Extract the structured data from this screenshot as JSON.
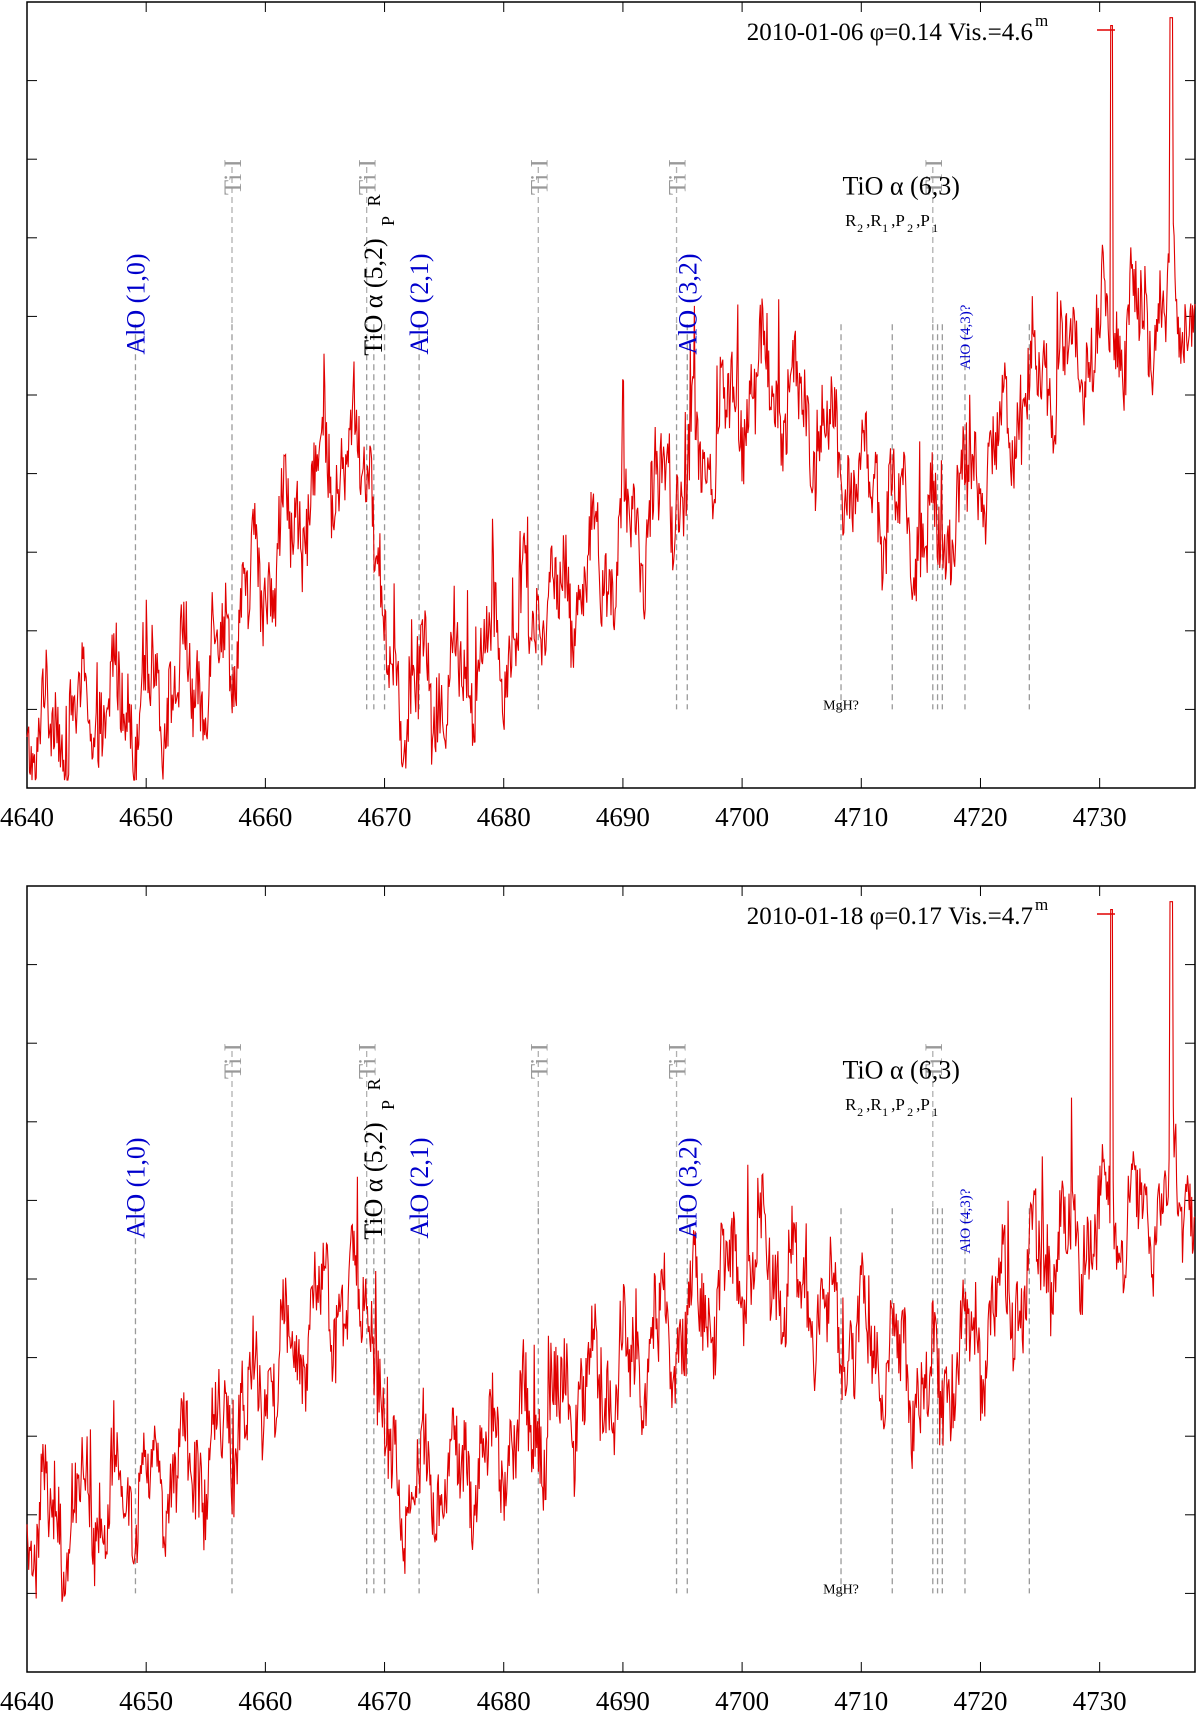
{
  "chart_data": [
    {
      "type": "line",
      "title": "",
      "xlabel": "",
      "ylabel": "",
      "xlim": [
        4640,
        4738
      ],
      "ylim": [
        0,
        1
      ],
      "x_ticks": [
        4640,
        4650,
        4660,
        4670,
        4680,
        4690,
        4700,
        4710,
        4720,
        4730
      ],
      "grid": false,
      "legend": {
        "label": "2010-01-06 φ=0.14 Vis.=4.6",
        "superscript": "m",
        "placement": "top-right",
        "color": "#e00000"
      },
      "series": [
        {
          "name": "2010-01-06 φ=0.14 Vis.=4.6m",
          "color": "#e00000",
          "x_range": [
            4640,
            4738
          ],
          "trend": [
            [
              4640,
              0.06
            ],
            [
              4655,
              0.14
            ],
            [
              4665,
              0.4
            ],
            [
              4669,
              0.42
            ],
            [
              4670,
              0.14
            ],
            [
              4674,
              0.11
            ],
            [
              4690,
              0.3
            ],
            [
              4702,
              0.52
            ],
            [
              4708,
              0.42
            ],
            [
              4716,
              0.3
            ],
            [
              4725,
              0.52
            ],
            [
              4738,
              0.62
            ]
          ],
          "peaks": [
            [
              4731,
              0.97
            ],
            [
              4736,
              0.98
            ]
          ]
        }
      ],
      "line_ids": [
        {
          "label": "AlO (1,0)",
          "x": 4649.1,
          "color": "#0000cc"
        },
        {
          "label": "Ti I",
          "x": 4657.2,
          "color": "#999999"
        },
        {
          "label": "Ti I",
          "x": 4668.5,
          "color": "#999999"
        },
        {
          "label": "AlO (2,1)",
          "x": 4672.9,
          "color": "#0000cc"
        },
        {
          "label": "Ti I",
          "x": 4682.9,
          "color": "#999999"
        },
        {
          "label": "Ti I",
          "x": 4694.5,
          "color": "#999999"
        },
        {
          "label": "AlO (3,2)",
          "x": 4695.4,
          "color": "#0000cc"
        },
        {
          "label": "Ti I",
          "x": 4716.0,
          "color": "#999999"
        }
      ],
      "annotations": {
        "tio52": "TiO α (5,2)",
        "tio52_R": "R",
        "tio52_P": "P",
        "tio63": "TiO α (6,3)",
        "branches": [
          {
            "label": "R",
            "sub": "2"
          },
          {
            "label": ",R",
            "sub": "1"
          },
          {
            "label": ",P",
            "sub": "2"
          },
          {
            "label": ",P",
            "sub": "1"
          }
        ],
        "alo43": "AlO (4,3)?",
        "mgh": "MgH?"
      },
      "dashed_markers": [
        4649.1,
        4657.2,
        4668.5,
        4669.1,
        4670.0,
        4672.9,
        4682.9,
        4694.5,
        4695.4,
        4708.3,
        4712.6,
        4716.0,
        4716.4,
        4716.8,
        4718.7,
        4724.1
      ]
    },
    {
      "type": "line",
      "title": "",
      "xlabel": "",
      "ylabel": "",
      "xlim": [
        4640,
        4738
      ],
      "ylim": [
        0,
        1
      ],
      "x_ticks": [
        4640,
        4650,
        4660,
        4670,
        4680,
        4690,
        4700,
        4710,
        4720,
        4730
      ],
      "grid": false,
      "legend": {
        "label": "2010-01-18 φ=0.17 Vis.=4.7",
        "superscript": "m",
        "placement": "top-right",
        "color": "#e00000"
      },
      "series": [
        {
          "name": "2010-01-18 φ=0.17 Vis.=4.7m",
          "color": "#e00000",
          "x_range": [
            4640,
            4738
          ],
          "trend": [
            [
              4640,
              0.18
            ],
            [
              4655,
              0.26
            ],
            [
              4665,
              0.46
            ],
            [
              4669,
              0.48
            ],
            [
              4670,
              0.25
            ],
            [
              4674,
              0.23
            ],
            [
              4690,
              0.38
            ],
            [
              4702,
              0.52
            ],
            [
              4708,
              0.44
            ],
            [
              4716,
              0.34
            ],
            [
              4725,
              0.52
            ],
            [
              4738,
              0.62
            ]
          ],
          "peaks": [
            [
              4731,
              0.97
            ],
            [
              4736,
              0.98
            ]
          ]
        }
      ],
      "line_ids": [
        {
          "label": "AlO (1,0)",
          "x": 4649.1,
          "color": "#0000cc"
        },
        {
          "label": "Ti I",
          "x": 4657.2,
          "color": "#999999"
        },
        {
          "label": "Ti I",
          "x": 4668.5,
          "color": "#999999"
        },
        {
          "label": "AlO (2,1)",
          "x": 4672.9,
          "color": "#0000cc"
        },
        {
          "label": "Ti I",
          "x": 4682.9,
          "color": "#999999"
        },
        {
          "label": "Ti I",
          "x": 4694.5,
          "color": "#999999"
        },
        {
          "label": "AlO (3,2)",
          "x": 4695.4,
          "color": "#0000cc"
        },
        {
          "label": "Ti I",
          "x": 4716.0,
          "color": "#999999"
        }
      ],
      "annotations": {
        "tio52": "TiO α (5,2)",
        "tio52_R": "R",
        "tio52_P": "P",
        "tio63": "TiO α (6,3)",
        "branches": [
          {
            "label": "R",
            "sub": "2"
          },
          {
            "label": ",R",
            "sub": "1"
          },
          {
            "label": ",P",
            "sub": "2"
          },
          {
            "label": ",P",
            "sub": "1"
          }
        ],
        "alo43": "AlO (4,3)?",
        "mgh": "MgH?"
      },
      "dashed_markers": [
        4649.1,
        4657.2,
        4668.5,
        4669.1,
        4670.0,
        4672.9,
        4682.9,
        4694.5,
        4695.4,
        4708.3,
        4712.6,
        4716.0,
        4716.4,
        4716.8,
        4718.7,
        4724.1
      ]
    }
  ]
}
